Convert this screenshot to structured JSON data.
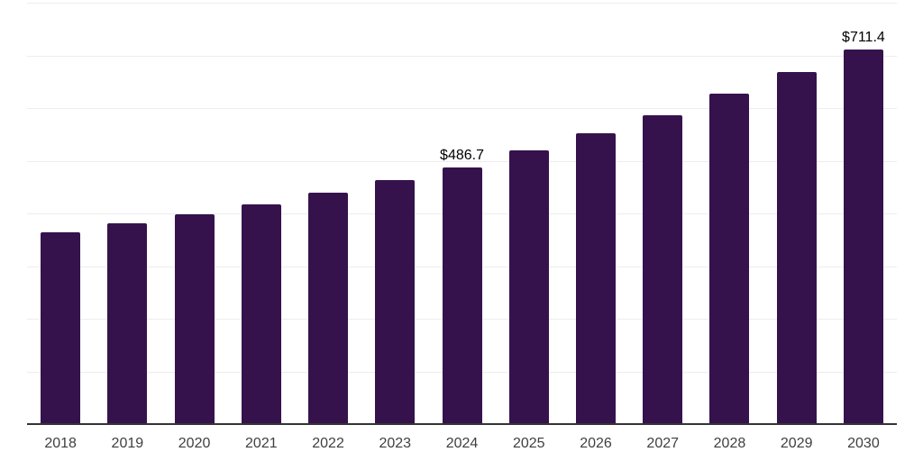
{
  "chart_data": {
    "type": "bar",
    "title": "",
    "xlabel": "",
    "ylabel": "",
    "categories": [
      "2018",
      "2019",
      "2020",
      "2021",
      "2022",
      "2023",
      "2024",
      "2025",
      "2026",
      "2027",
      "2028",
      "2029",
      "2030"
    ],
    "values": [
      364,
      382,
      398,
      417,
      439,
      463,
      486.7,
      519,
      552,
      586,
      627,
      668,
      711.4
    ],
    "point_labels": [
      "",
      "",
      "",
      "",
      "",
      "",
      "$486.7",
      "",
      "",
      "",
      "",
      "",
      "$711.4"
    ],
    "ylim": [
      0,
      800
    ],
    "grid_step": 100,
    "grid": true,
    "legend": false,
    "y_tick_labels_visible": false,
    "colors": {
      "bar": "#36124d",
      "axis_line": "#333333",
      "gridline": "#ededed",
      "x_tick_label": "#3f3f3f",
      "point_label": "#000000",
      "background": "#ffffff"
    }
  }
}
